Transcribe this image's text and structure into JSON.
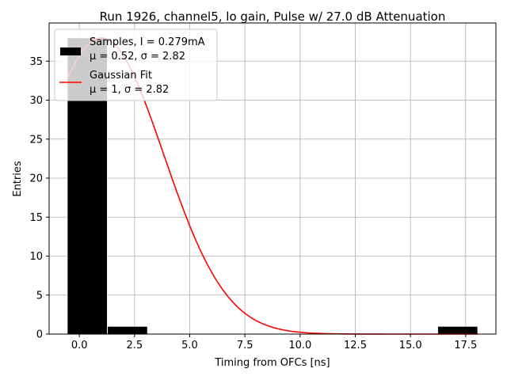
{
  "chart_data": {
    "type": "bar",
    "title": "Run 1926, channel5, lo gain, Pulse w/ 27.0 dB Attenuation",
    "xlabel": "Timing from OFCs [ns]",
    "ylabel": "Entries",
    "xlim": [
      -1.37,
      18.87
    ],
    "ylim": [
      0,
      39.9
    ],
    "x_ticks": [
      0,
      2.5,
      5,
      7.5,
      10,
      12.5,
      15,
      17.5
    ],
    "x_tick_labels": [
      "0.0",
      "2.5",
      "5.0",
      "7.5",
      "10.0",
      "12.5",
      "15.0",
      "17.5"
    ],
    "y_ticks": [
      0,
      5,
      10,
      15,
      20,
      25,
      30,
      35
    ],
    "y_tick_labels": [
      "0",
      "5",
      "10",
      "15",
      "20",
      "25",
      "30",
      "35"
    ],
    "grid": true,
    "legend_position": "upper-left",
    "histogram": {
      "name": "Samples, I = 0.279mA",
      "stats": "μ = 0.52, σ = 2.82",
      "color": "#000000",
      "bins": [
        {
          "x0": -0.55,
          "x1": 1.27,
          "count": 38
        },
        {
          "x0": 1.27,
          "x1": 3.09,
          "count": 1
        },
        {
          "x0": 16.23,
          "x1": 18.05,
          "count": 1
        }
      ]
    },
    "fit": {
      "name": "Gaussian Fit",
      "stats": "μ = 1, σ = 2.82",
      "color": "#ff0000",
      "mu": 1,
      "sigma": 2.82,
      "amplitude": 38,
      "x_range": [
        -0.55,
        18.05
      ]
    }
  }
}
